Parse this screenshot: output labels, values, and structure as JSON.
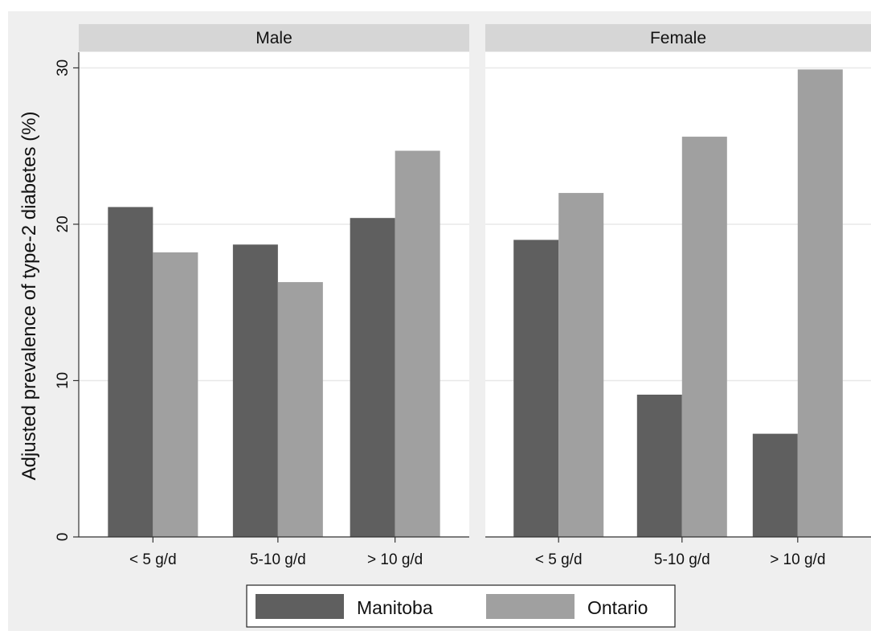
{
  "chart_data": {
    "type": "bar",
    "ylabel": "Adjusted prevalence of type-2 diabetes (%)",
    "ylim": [
      0,
      31
    ],
    "yticks": [
      0,
      10,
      20,
      30
    ],
    "grid": true,
    "legend_position": "bottom",
    "categories": [
      "< 5 g/d",
      "5-10 g/d",
      "> 10 g/d"
    ],
    "panels": [
      {
        "title": "Male",
        "series": [
          {
            "name": "Manitoba",
            "values": [
              21.1,
              18.7,
              20.4
            ]
          },
          {
            "name": "Ontario",
            "values": [
              18.2,
              16.3,
              24.7
            ]
          }
        ]
      },
      {
        "title": "Female",
        "series": [
          {
            "name": "Manitoba",
            "values": [
              19.0,
              9.1,
              6.6
            ]
          },
          {
            "name": "Ontario",
            "values": [
              22.0,
              25.6,
              29.9
            ]
          }
        ]
      }
    ],
    "colors": {
      "Manitoba": "#5f5f5f",
      "Ontario": "#a0a0a0",
      "panel_header": "#d6d6d6",
      "background": "#efefef",
      "gridline": "#e8e8e8"
    }
  }
}
